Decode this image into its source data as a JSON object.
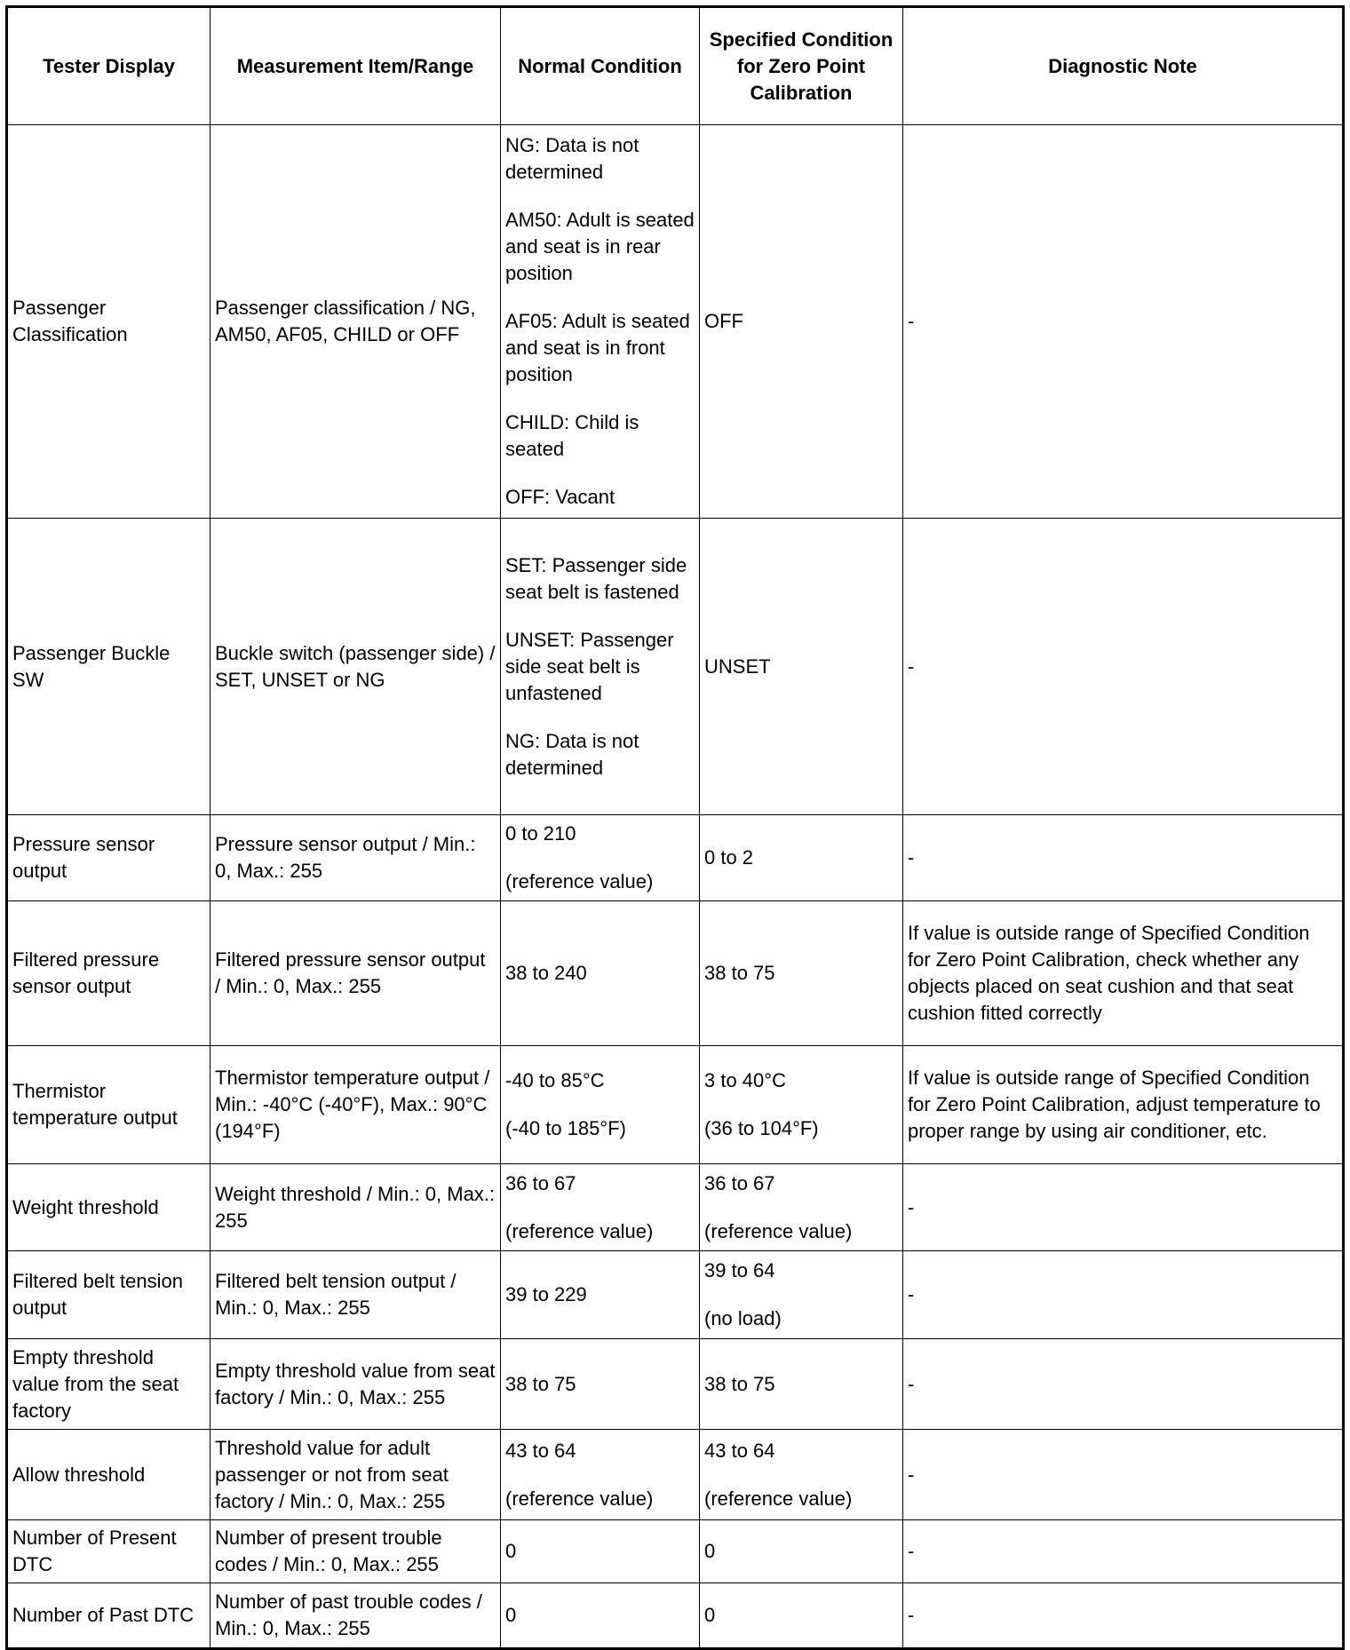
{
  "headers": [
    "Tester Display",
    "Measurement Item/Range",
    "Normal Condition",
    "Specified Condition for Zero Point Calibration",
    "Diagnostic Note"
  ],
  "rows": [
    {
      "tester": "Passenger Classification",
      "item": "Passenger classification / NG, AM50, AF05, CHILD or OFF",
      "normal": [
        "NG: Data is not determined",
        "AM50: Adult is seated and seat is in rear position",
        "AF05: Adult is seated and seat is in front position",
        "CHILD: Child is seated",
        "OFF: Vacant"
      ],
      "zero": [
        "OFF"
      ],
      "note": "-"
    },
    {
      "tester": "Passenger Buckle SW",
      "item": "Buckle switch (passenger side) / SET, UNSET or NG",
      "normal": [
        "SET: Passenger side seat belt is fastened",
        "UNSET: Passenger side seat belt is unfastened",
        "NG: Data is not determined"
      ],
      "zero": [
        "UNSET"
      ],
      "note": "-"
    },
    {
      "tester": "Pressure sensor output",
      "item": "Pressure sensor output / Min.: 0, Max.: 255",
      "normal": [
        "0 to 210",
        "(reference value)"
      ],
      "zero": [
        "0 to 2"
      ],
      "note": "-"
    },
    {
      "tester": "Filtered pressure sensor output",
      "item": "Filtered pressure sensor output / Min.: 0, Max.: 255",
      "normal": [
        "38 to 240"
      ],
      "zero": [
        "38 to 75"
      ],
      "note": "If value is outside range of Specified Condition for Zero Point Calibration, check whether any objects placed on seat cushion and that seat cushion fitted correctly"
    },
    {
      "tester": "Thermistor temperature output",
      "item": "Thermistor temperature output / Min.: -40°C (-40°F), Max.: 90°C (194°F)",
      "normal": [
        "-40 to 85°C",
        "(-40 to 185°F)"
      ],
      "zero": [
        "3 to 40°C",
        "(36 to 104°F)"
      ],
      "note": "If value is outside range of Specified Condition for Zero Point Calibration, adjust temperature to proper range by using air conditioner, etc."
    },
    {
      "tester": "Weight threshold",
      "item": "Weight threshold / Min.: 0, Max.: 255",
      "normal": [
        "36 to 67",
        "(reference value)"
      ],
      "zero": [
        "36 to 67",
        "(reference value)"
      ],
      "note": "-"
    },
    {
      "tester": "Filtered belt tension output",
      "item": "Filtered belt tension output / Min.: 0, Max.: 255",
      "normal": [
        "39 to 229"
      ],
      "zero": [
        "39 to 64",
        "(no load)"
      ],
      "note": "-"
    },
    {
      "tester": "Empty threshold value from the seat factory",
      "item": "Empty threshold value from seat factory / Min.: 0, Max.: 255",
      "normal": [
        "38 to 75"
      ],
      "zero": [
        "38 to 75"
      ],
      "note": "-"
    },
    {
      "tester": "Allow threshold",
      "item": "Threshold value for adult passenger or not from seat factory / Min.: 0, Max.: 255",
      "normal": [
        "43 to 64",
        "(reference value)"
      ],
      "zero": [
        "43 to 64",
        "(reference value)"
      ],
      "note": "-"
    },
    {
      "tester": "Number of Present DTC",
      "item": "Number of present trouble codes / Min.: 0, Max.: 255",
      "normal": [
        "0"
      ],
      "zero": [
        "0"
      ],
      "note": "-"
    },
    {
      "tester": "Number of Past DTC",
      "item": "Number of past trouble codes / Min.: 0, Max.: 255",
      "normal": [
        "0"
      ],
      "zero": [
        "0"
      ],
      "note": "-"
    }
  ]
}
